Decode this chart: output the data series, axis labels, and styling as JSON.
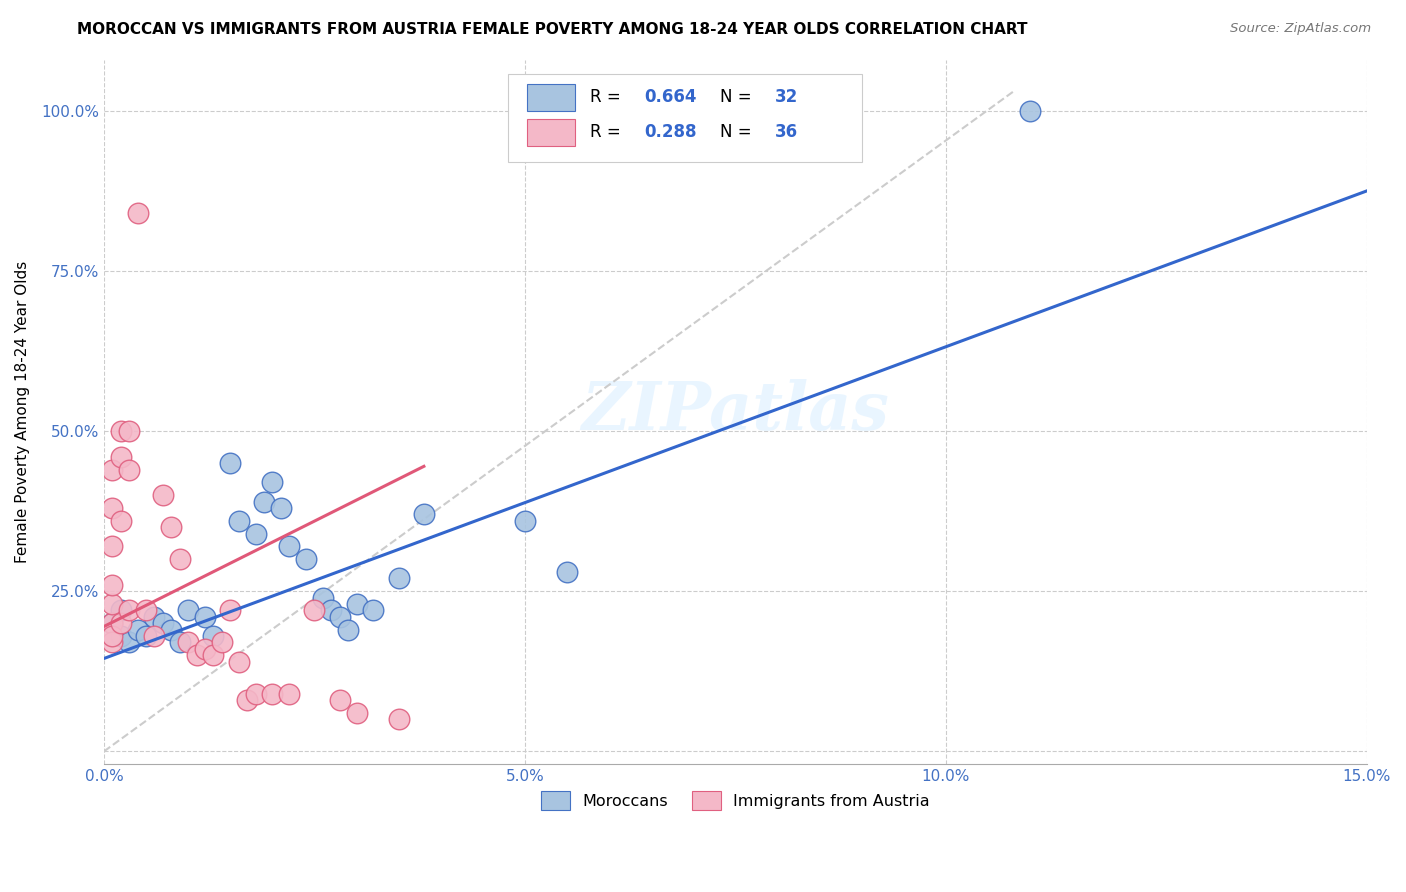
{
  "title": "MOROCCAN VS IMMIGRANTS FROM AUSTRIA FEMALE POVERTY AMONG 18-24 YEAR OLDS CORRELATION CHART",
  "source": "Source: ZipAtlas.com",
  "ylabel": "Female Poverty Among 18-24 Year Olds",
  "xlim": [
    0.0,
    0.15
  ],
  "ylim": [
    -0.02,
    1.08
  ],
  "xticks": [
    0.0,
    0.05,
    0.1,
    0.15
  ],
  "xticklabels": [
    "0.0%",
    "5.0%",
    "10.0%",
    "15.0%"
  ],
  "yticks": [
    0.0,
    0.25,
    0.5,
    0.75,
    1.0
  ],
  "yticklabels": [
    "",
    "25.0%",
    "50.0%",
    "75.0%",
    "100.0%"
  ],
  "blue_color": "#A8C4E0",
  "pink_color": "#F4B8C8",
  "blue_edge_color": "#4472C4",
  "pink_edge_color": "#E06080",
  "blue_line_color": "#3366CC",
  "pink_line_color": "#E05878",
  "diagonal_color": "#CCCCCC",
  "R_blue": 0.664,
  "N_blue": 32,
  "R_pink": 0.288,
  "N_pink": 36,
  "watermark": "ZIPatlas",
  "legend_blue_label": "Moroccans",
  "legend_pink_label": "Immigrants from Austria",
  "blue_scatter": [
    [
      0.001,
      0.2
    ],
    [
      0.002,
      0.18
    ],
    [
      0.002,
      0.22
    ],
    [
      0.003,
      0.17
    ],
    [
      0.004,
      0.19
    ],
    [
      0.005,
      0.18
    ],
    [
      0.006,
      0.21
    ],
    [
      0.007,
      0.2
    ],
    [
      0.008,
      0.19
    ],
    [
      0.009,
      0.17
    ],
    [
      0.01,
      0.22
    ],
    [
      0.012,
      0.21
    ],
    [
      0.013,
      0.18
    ],
    [
      0.015,
      0.45
    ],
    [
      0.016,
      0.36
    ],
    [
      0.018,
      0.34
    ],
    [
      0.019,
      0.39
    ],
    [
      0.02,
      0.42
    ],
    [
      0.021,
      0.38
    ],
    [
      0.022,
      0.32
    ],
    [
      0.024,
      0.3
    ],
    [
      0.026,
      0.24
    ],
    [
      0.027,
      0.22
    ],
    [
      0.028,
      0.21
    ],
    [
      0.029,
      0.19
    ],
    [
      0.03,
      0.23
    ],
    [
      0.032,
      0.22
    ],
    [
      0.035,
      0.27
    ],
    [
      0.038,
      0.37
    ],
    [
      0.05,
      0.36
    ],
    [
      0.055,
      0.28
    ],
    [
      0.11,
      1.0
    ]
  ],
  "pink_scatter": [
    [
      0.001,
      0.2
    ],
    [
      0.001,
      0.17
    ],
    [
      0.001,
      0.23
    ],
    [
      0.001,
      0.18
    ],
    [
      0.001,
      0.26
    ],
    [
      0.001,
      0.32
    ],
    [
      0.001,
      0.38
    ],
    [
      0.001,
      0.44
    ],
    [
      0.002,
      0.2
    ],
    [
      0.002,
      0.36
    ],
    [
      0.002,
      0.46
    ],
    [
      0.002,
      0.5
    ],
    [
      0.003,
      0.22
    ],
    [
      0.003,
      0.44
    ],
    [
      0.003,
      0.5
    ],
    [
      0.004,
      0.84
    ],
    [
      0.005,
      0.22
    ],
    [
      0.006,
      0.18
    ],
    [
      0.007,
      0.4
    ],
    [
      0.008,
      0.35
    ],
    [
      0.009,
      0.3
    ],
    [
      0.01,
      0.17
    ],
    [
      0.011,
      0.15
    ],
    [
      0.012,
      0.16
    ],
    [
      0.013,
      0.15
    ],
    [
      0.014,
      0.17
    ],
    [
      0.015,
      0.22
    ],
    [
      0.016,
      0.14
    ],
    [
      0.017,
      0.08
    ],
    [
      0.018,
      0.09
    ],
    [
      0.02,
      0.09
    ],
    [
      0.022,
      0.09
    ],
    [
      0.025,
      0.22
    ],
    [
      0.028,
      0.08
    ],
    [
      0.03,
      0.06
    ],
    [
      0.035,
      0.05
    ]
  ],
  "blue_line": [
    [
      0.0,
      0.145
    ],
    [
      0.15,
      0.875
    ]
  ],
  "pink_line": [
    [
      0.0,
      0.195
    ],
    [
      0.038,
      0.445
    ]
  ]
}
